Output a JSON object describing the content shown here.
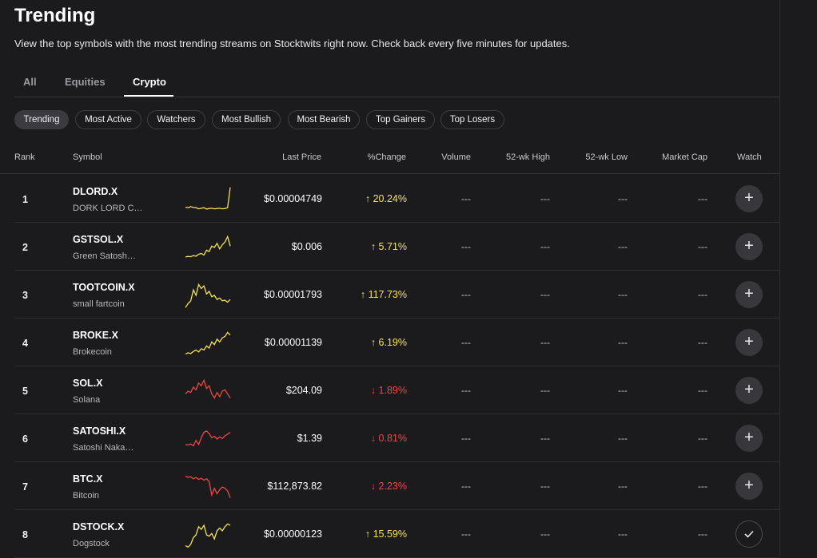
{
  "page": {
    "title": "Trending",
    "subtitle": "View the top symbols with the most trending streams on Stocktwits right now. Check back every five minutes for updates."
  },
  "tabs": [
    {
      "label": "All",
      "active": false
    },
    {
      "label": "Equities",
      "active": false
    },
    {
      "label": "Crypto",
      "active": true
    }
  ],
  "filters": [
    {
      "label": "Trending",
      "active": true
    },
    {
      "label": "Most Active",
      "active": false
    },
    {
      "label": "Watchers",
      "active": false
    },
    {
      "label": "Most Bullish",
      "active": false
    },
    {
      "label": "Most Bearish",
      "active": false
    },
    {
      "label": "Top Gainers",
      "active": false
    },
    {
      "label": "Top Losers",
      "active": false
    }
  ],
  "table": {
    "columns": [
      "Rank",
      "Symbol",
      "Last Price",
      "%Change",
      "Volume",
      "52-wk High",
      "52-wk Low",
      "Market Cap",
      "Watch"
    ],
    "rows": [
      {
        "rank": "1",
        "symbol": "DLORD.X",
        "name": "DORK LORD C…",
        "price": "$0.00004749",
        "change": "20.24%",
        "direction": "up",
        "volume": "---",
        "high52": "---",
        "low52": "---",
        "marketcap": "---",
        "watched": false,
        "spark_color": "#f5e04a",
        "spark": [
          0.78,
          0.8,
          0.76,
          0.79,
          0.8,
          0.84,
          0.82,
          0.8,
          0.85,
          0.83,
          0.82,
          0.84,
          0.83,
          0.82,
          0.84,
          0.83,
          0.8,
          0.05
        ]
      },
      {
        "rank": "2",
        "symbol": "GSTSOL.X",
        "name": "Green Satosh…",
        "price": "$0.006",
        "change": "5.71%",
        "direction": "up",
        "volume": "---",
        "high52": "---",
        "low52": "---",
        "marketcap": "---",
        "watched": false,
        "spark_color": "#f5e04a",
        "spark": [
          0.85,
          0.83,
          0.84,
          0.8,
          0.82,
          0.75,
          0.72,
          0.78,
          0.6,
          0.65,
          0.45,
          0.5,
          0.35,
          0.55,
          0.4,
          0.3,
          0.1,
          0.45
        ]
      },
      {
        "rank": "3",
        "symbol": "TOOTCOIN.X",
        "name": "small fartcoin",
        "price": "$0.00001793",
        "change": "117.73%",
        "direction": "up",
        "volume": "---",
        "high52": "---",
        "low52": "---",
        "marketcap": "---",
        "watched": false,
        "spark_color": "#f5e04a",
        "spark": [
          0.95,
          0.8,
          0.7,
          0.3,
          0.5,
          0.1,
          0.25,
          0.15,
          0.45,
          0.35,
          0.55,
          0.5,
          0.65,
          0.6,
          0.7,
          0.68,
          0.75,
          0.65
        ]
      },
      {
        "rank": "4",
        "symbol": "BROKE.X",
        "name": "Brokecoin",
        "price": "$0.00001139",
        "change": "6.19%",
        "direction": "up",
        "volume": "---",
        "high52": "---",
        "low52": "---",
        "marketcap": "---",
        "watched": false,
        "spark_color": "#f5e04a",
        "spark": [
          0.9,
          0.85,
          0.88,
          0.8,
          0.75,
          0.82,
          0.7,
          0.75,
          0.6,
          0.68,
          0.45,
          0.55,
          0.35,
          0.45,
          0.3,
          0.25,
          0.1,
          0.2
        ]
      },
      {
        "rank": "5",
        "symbol": "SOL.X",
        "name": "Solana",
        "price": "$204.09",
        "change": "1.89%",
        "direction": "down",
        "volume": "---",
        "high52": "---",
        "low52": "---",
        "marketcap": "---",
        "watched": false,
        "spark_color": "#f0453f",
        "spark": [
          0.6,
          0.5,
          0.55,
          0.35,
          0.45,
          0.2,
          0.3,
          0.1,
          0.4,
          0.3,
          0.6,
          0.75,
          0.55,
          0.7,
          0.5,
          0.45,
          0.6,
          0.75
        ]
      },
      {
        "rank": "6",
        "symbol": "SATOSHI.X",
        "name": "Satoshi Naka…",
        "price": "$1.39",
        "change": "0.81%",
        "direction": "down",
        "volume": "---",
        "high52": "---",
        "low52": "---",
        "marketcap": "---",
        "watched": false,
        "spark_color": "#f0453f",
        "spark": [
          0.7,
          0.72,
          0.68,
          0.75,
          0.55,
          0.7,
          0.45,
          0.25,
          0.2,
          0.3,
          0.45,
          0.4,
          0.5,
          0.42,
          0.48,
          0.38,
          0.32,
          0.25
        ]
      },
      {
        "rank": "7",
        "symbol": "BTC.X",
        "name": "Bitcoin",
        "price": "$112,873.82",
        "change": "2.23%",
        "direction": "down",
        "volume": "---",
        "high52": "---",
        "low52": "---",
        "marketcap": "---",
        "watched": false,
        "spark_color": "#f0453f",
        "spark": [
          0.1,
          0.15,
          0.12,
          0.2,
          0.15,
          0.22,
          0.18,
          0.25,
          0.2,
          0.3,
          0.8,
          0.55,
          0.75,
          0.6,
          0.5,
          0.55,
          0.65,
          0.9
        ]
      },
      {
        "rank": "8",
        "symbol": "DSTOCK.X",
        "name": "Dogstock",
        "price": "$0.00000123",
        "change": "15.59%",
        "direction": "up",
        "volume": "---",
        "high52": "---",
        "low52": "---",
        "marketcap": "---",
        "watched": true,
        "spark_color": "#f5e04a",
        "spark": [
          0.9,
          0.95,
          0.85,
          0.6,
          0.5,
          0.2,
          0.3,
          0.15,
          0.5,
          0.55,
          0.45,
          0.65,
          0.35,
          0.25,
          0.35,
          0.2,
          0.1,
          0.15
        ]
      }
    ]
  }
}
